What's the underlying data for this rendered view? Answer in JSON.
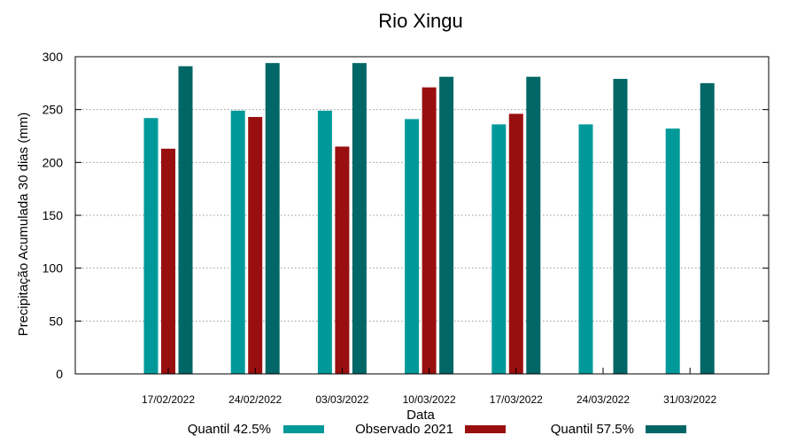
{
  "chart_data": {
    "type": "bar",
    "title": "Rio Xingu",
    "xlabel": "Data",
    "ylabel": "Precipitação Acumulada 30 dias (mm)",
    "ylim": [
      0,
      300
    ],
    "yticks": [
      0,
      50,
      100,
      150,
      200,
      250,
      300
    ],
    "grid": true,
    "legend_position": "bottom",
    "categories": [
      "17/02/2022",
      "24/02/2022",
      "03/03/2022",
      "10/03/2022",
      "17/03/2022",
      "24/03/2022",
      "31/03/2022"
    ],
    "series": [
      {
        "name": "Quantil 42.5%",
        "color": "#009999",
        "values": [
          242,
          249,
          249,
          241,
          236,
          236,
          232
        ]
      },
      {
        "name": "Observado 2021",
        "color": "#990f0f",
        "values": [
          213,
          243,
          215,
          271,
          246,
          null,
          null
        ]
      },
      {
        "name": "Quantil 57.5%",
        "color": "#006666",
        "values": [
          291,
          294,
          294,
          281,
          281,
          279,
          275
        ]
      }
    ]
  }
}
